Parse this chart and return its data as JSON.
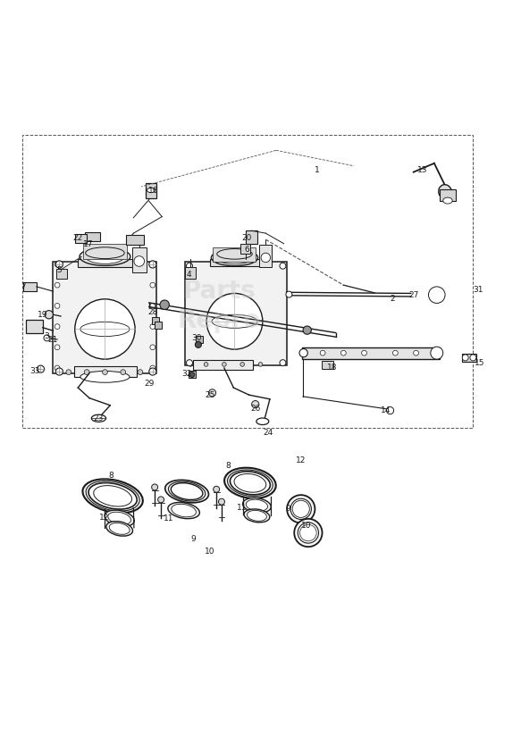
{
  "bg_color": "#ffffff",
  "line_color": "#1a1a1a",
  "label_color": "#1a1a1a",
  "dashed_color": "#555555",
  "watermark_color": "#cccccc",
  "watermark_alpha": 0.45,
  "fig_width": 5.83,
  "fig_height": 8.24
}
